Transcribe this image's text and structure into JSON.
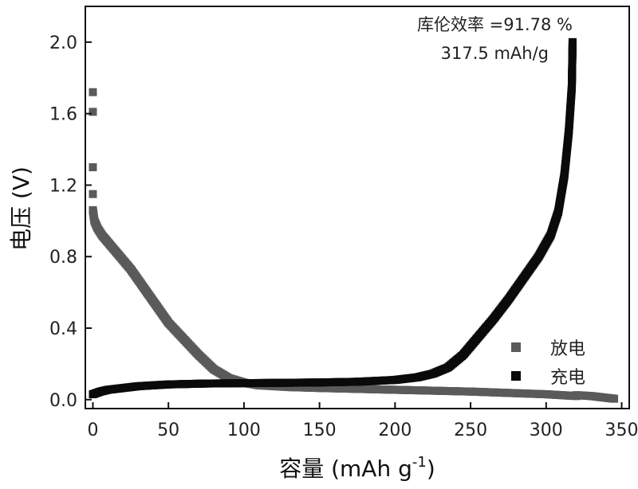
{
  "chart_data": {
    "type": "scatter",
    "xlabel": "容量 (mAh g",
    "xlabel_sup": "-1",
    "xlabel_tail": ")",
    "ylabel": "电压 (V)",
    "xlim": [
      -5,
      355
    ],
    "ylim": [
      -0.05,
      2.2
    ],
    "x_ticks": [
      0,
      50,
      100,
      150,
      200,
      250,
      300,
      350
    ],
    "x_tick_labels": [
      "0",
      "50",
      "100",
      "150",
      "200",
      "250",
      "300",
      "350"
    ],
    "y_ticks": [
      0.0,
      0.4,
      0.8,
      1.2,
      1.6,
      2.0
    ],
    "y_tick_labels": [
      "0.0",
      "0.4",
      "0.8",
      "1.2",
      "1.6",
      "2.0"
    ],
    "annotations": [
      "库伦效率 =91.78 %",
      "317.5 mAh/g"
    ],
    "legend_position": "lower-right",
    "grid": false,
    "series": [
      {
        "name": "放电",
        "color": "#5a5a5a",
        "isolated_points": [
          [
            0,
            1.72
          ],
          [
            0,
            1.61
          ],
          [
            0,
            1.3
          ],
          [
            0,
            1.15
          ]
        ],
        "points": [
          [
            0,
            1.06
          ],
          [
            1,
            1.0
          ],
          [
            3,
            0.96
          ],
          [
            6,
            0.92
          ],
          [
            10,
            0.88
          ],
          [
            15,
            0.83
          ],
          [
            20,
            0.78
          ],
          [
            25,
            0.73
          ],
          [
            30,
            0.67
          ],
          [
            35,
            0.61
          ],
          [
            40,
            0.55
          ],
          [
            45,
            0.49
          ],
          [
            50,
            0.43
          ],
          [
            60,
            0.34
          ],
          [
            70,
            0.25
          ],
          [
            80,
            0.17
          ],
          [
            90,
            0.12
          ],
          [
            100,
            0.095
          ],
          [
            110,
            0.08
          ],
          [
            130,
            0.07
          ],
          [
            150,
            0.065
          ],
          [
            200,
            0.055
          ],
          [
            250,
            0.045
          ],
          [
            300,
            0.03
          ],
          [
            320,
            0.02
          ]
        ]
      },
      {
        "name": "",
        "color": "#5a5a5a",
        "points": [
          [
            320,
            0.025
          ],
          [
            330,
            0.02
          ],
          [
            340,
            0.01
          ],
          [
            345,
            0.005
          ]
        ]
      },
      {
        "name": "充电",
        "color": "#0a0a0a",
        "points": [
          [
            0,
            0.03
          ],
          [
            5,
            0.045
          ],
          [
            10,
            0.055
          ],
          [
            20,
            0.065
          ],
          [
            30,
            0.075
          ],
          [
            50,
            0.085
          ],
          [
            75,
            0.09
          ],
          [
            100,
            0.092
          ],
          [
            125,
            0.094
          ],
          [
            150,
            0.096
          ],
          [
            175,
            0.1
          ],
          [
            200,
            0.11
          ],
          [
            215,
            0.125
          ],
          [
            225,
            0.145
          ],
          [
            235,
            0.18
          ],
          [
            245,
            0.25
          ],
          [
            255,
            0.35
          ],
          [
            265,
            0.45
          ],
          [
            275,
            0.56
          ],
          [
            285,
            0.68
          ],
          [
            295,
            0.8
          ],
          [
            303,
            0.92
          ],
          [
            308,
            1.05
          ],
          [
            312,
            1.25
          ],
          [
            315,
            1.5
          ],
          [
            317,
            1.75
          ],
          [
            317.5,
            2.0
          ]
        ]
      }
    ]
  }
}
